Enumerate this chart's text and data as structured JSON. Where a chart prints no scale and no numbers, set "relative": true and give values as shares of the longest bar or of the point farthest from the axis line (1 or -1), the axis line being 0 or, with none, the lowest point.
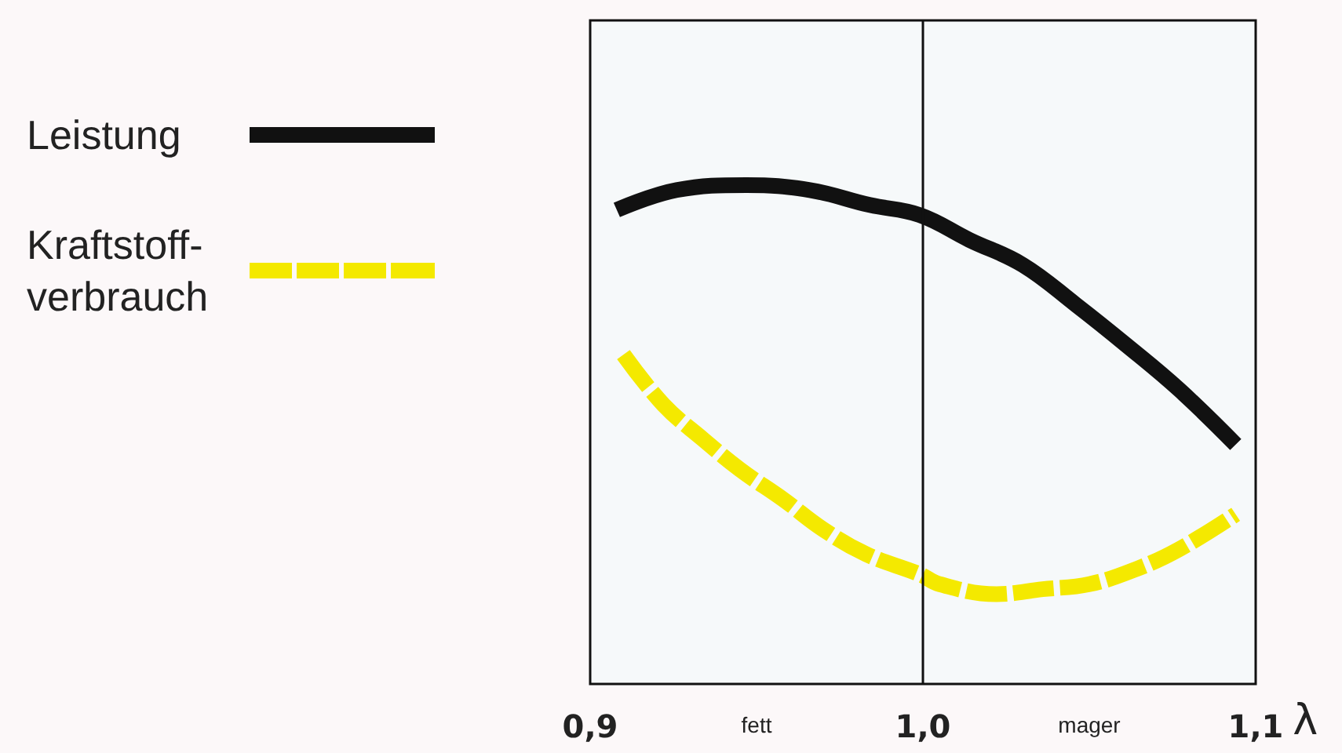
{
  "chart_data": {
    "type": "line",
    "xlabel": "λ",
    "relative": true,
    "xlim": [
      0.9,
      1.1
    ],
    "xticks": [
      {
        "value": 0.9,
        "label": "0,9"
      },
      {
        "value": 1.0,
        "label": "1,0"
      },
      {
        "value": 1.1,
        "label": "1,1"
      }
    ],
    "annotations": [
      "fett",
      "mager"
    ],
    "series": [
      {
        "name": "Leistung",
        "color": "#111111",
        "line_style": "solid",
        "x": [
          0.908,
          0.926,
          0.947,
          0.966,
          0.984,
          0.999,
          1.014,
          1.03,
          1.046,
          1.061,
          1.077,
          1.094
        ],
        "values": [
          0.95,
          0.99,
          1.0,
          0.99,
          0.96,
          0.94,
          0.89,
          0.84,
          0.76,
          0.68,
          0.59,
          0.48
        ]
      },
      {
        "name": "Kraftstoff-verbrauch",
        "color": "#f4e900",
        "line_style": "dashed",
        "x": [
          0.91,
          0.922,
          0.934,
          0.945,
          0.958,
          0.97,
          0.983,
          0.999,
          1.005,
          1.022,
          1.036,
          1.05,
          1.064,
          1.077,
          1.094
        ],
        "values": [
          0.66,
          0.56,
          0.49,
          0.43,
          0.37,
          0.31,
          0.26,
          0.22,
          0.2,
          0.18,
          0.19,
          0.2,
          0.23,
          0.27,
          0.34
        ]
      }
    ],
    "ref_lines": [
      {
        "axis": "x",
        "value": 1.0
      }
    ],
    "legend": "left",
    "grid": false,
    "marker": "none"
  }
}
